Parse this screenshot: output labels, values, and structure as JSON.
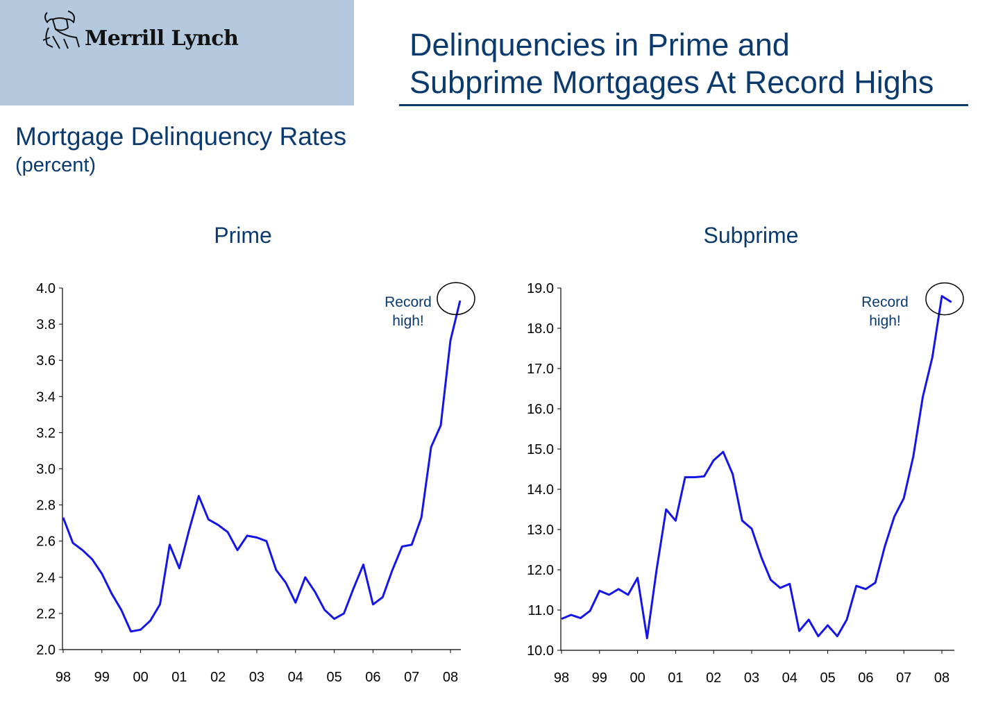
{
  "logo": {
    "brand": "Merrill Lynch",
    "icon": "bull-icon"
  },
  "header": {
    "title_line1": "Delinquencies in Prime and",
    "title_line2": "Subprime Mortgages At Record Highs"
  },
  "subtitle": "Mortgage Delinquency Rates",
  "unit": "(percent)",
  "colors": {
    "line": "#1515e6",
    "text": "#0b3a6e",
    "panel": "#b4c8de"
  },
  "chart_data": [
    {
      "type": "line",
      "title": "Prime",
      "ylim": [
        2.0,
        4.0
      ],
      "yticks": [
        "2.0",
        "2.2",
        "2.4",
        "2.6",
        "2.8",
        "3.0",
        "3.2",
        "3.4",
        "3.6",
        "3.8",
        "4.0"
      ],
      "xticks": [
        "98",
        "99",
        "00",
        "01",
        "02",
        "03",
        "04",
        "05",
        "06",
        "07",
        "08"
      ],
      "annotation": {
        "line1": "Record",
        "line2": "high!"
      },
      "series": [
        {
          "values": [
            2.73,
            2.59,
            2.55,
            2.5,
            2.42,
            2.31,
            2.22,
            2.1,
            2.11,
            2.16,
            2.25,
            2.58,
            2.45,
            2.66,
            2.85,
            2.72,
            2.69,
            2.65,
            2.55,
            2.63,
            2.62,
            2.6,
            2.44,
            2.37,
            2.26,
            2.4,
            2.32,
            2.22,
            2.17,
            2.2,
            2.34,
            2.47,
            2.25,
            2.29,
            2.44,
            2.57,
            2.58,
            2.73,
            3.12,
            3.24,
            3.71,
            3.93
          ]
        }
      ]
    },
    {
      "type": "line",
      "title": "Subprime",
      "ylim": [
        10.0,
        19.0
      ],
      "yticks": [
        "10.0",
        "11.0",
        "12.0",
        "13.0",
        "14.0",
        "15.0",
        "16.0",
        "17.0",
        "18.0",
        "19.0"
      ],
      "xticks": [
        "98",
        "99",
        "00",
        "01",
        "02",
        "03",
        "04",
        "05",
        "06",
        "07",
        "08"
      ],
      "annotation": {
        "line1": "Record",
        "line2": "high!"
      },
      "series": [
        {
          "values": [
            10.78,
            10.88,
            10.8,
            10.98,
            11.48,
            11.38,
            11.52,
            11.38,
            11.8,
            10.3,
            12.0,
            13.5,
            13.22,
            14.3,
            14.3,
            14.32,
            14.72,
            14.93,
            14.38,
            13.22,
            13.02,
            12.32,
            11.75,
            11.55,
            11.65,
            10.48,
            10.76,
            10.35,
            10.62,
            10.35,
            10.76,
            11.6,
            11.52,
            11.68,
            12.58,
            13.32,
            13.78,
            14.82,
            16.3,
            17.28,
            18.8,
            18.65
          ]
        }
      ]
    }
  ]
}
